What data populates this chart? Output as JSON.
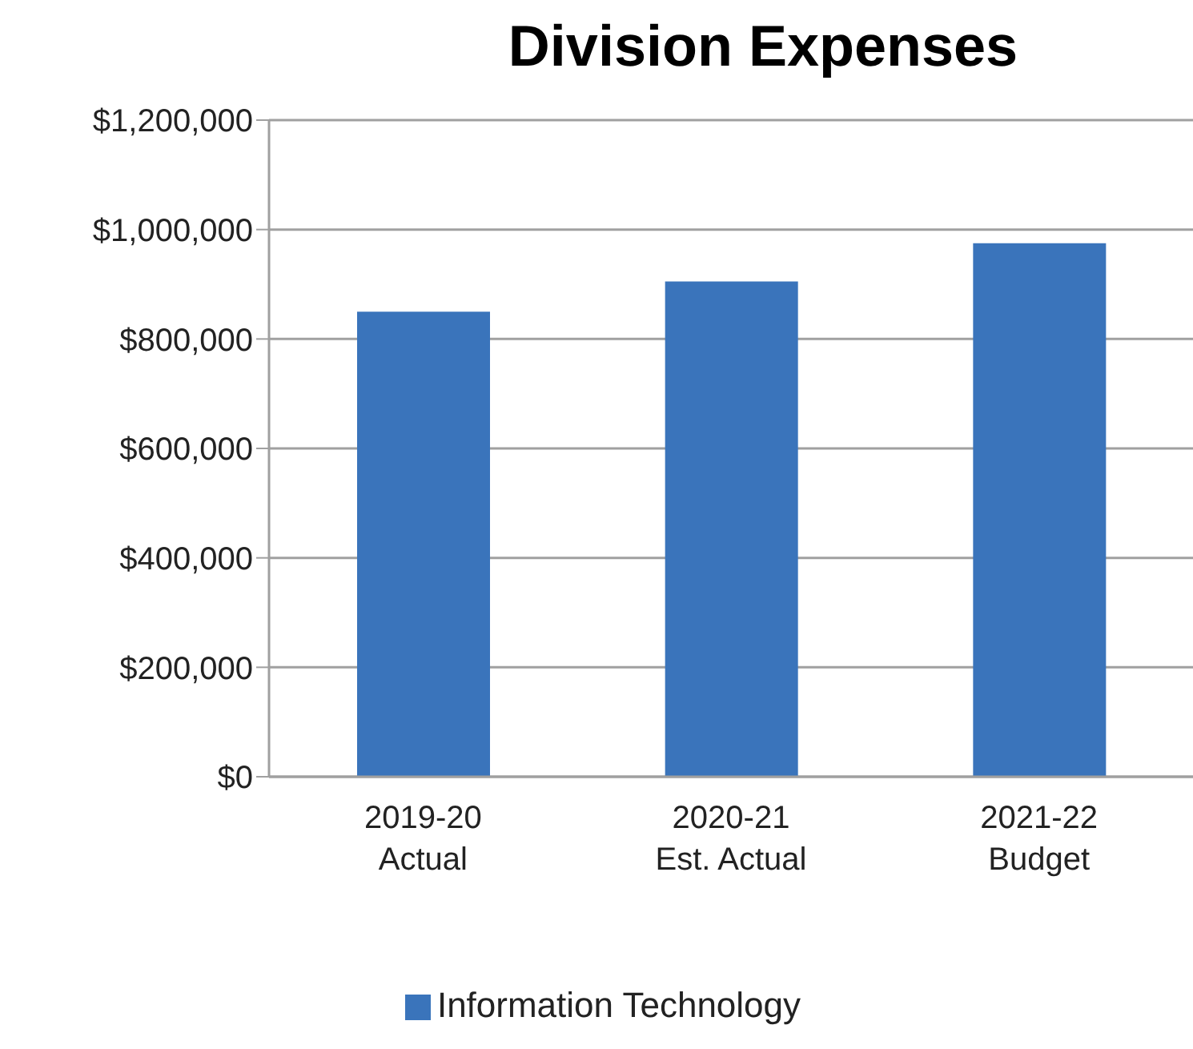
{
  "chart_data": {
    "type": "bar",
    "title": "Division Expenses",
    "categories": [
      "2019-20\nActual",
      "2020-21\nEst. Actual",
      "2021-22\nBudget"
    ],
    "series": [
      {
        "name": "Information Technology",
        "color": "#3a74bb",
        "values": [
          850000,
          905000,
          975000
        ]
      }
    ],
    "ylim": [
      0,
      1200000
    ],
    "yticks": [
      {
        "value": 0,
        "label": "$0"
      },
      {
        "value": 200000,
        "label": "$200,000"
      },
      {
        "value": 400000,
        "label": "$400,000"
      },
      {
        "value": 600000,
        "label": "$600,000"
      },
      {
        "value": 800000,
        "label": "$800,000"
      },
      {
        "value": 1000000,
        "label": "$1,000,000"
      },
      {
        "value": 1200000,
        "label": "$1,200,000"
      }
    ],
    "grid": "y",
    "legend": "bottom"
  }
}
